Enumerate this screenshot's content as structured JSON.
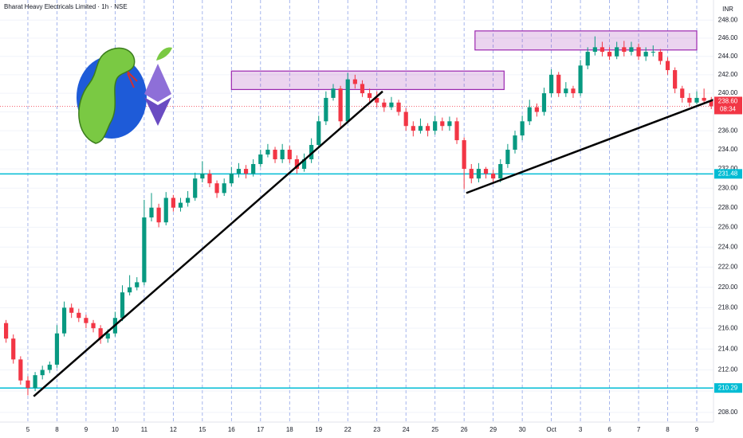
{
  "chart_data": {
    "type": "candlestick",
    "title": "Bharat Heavy Electricals Limited · 1h · NSE",
    "currency": "INR",
    "categories": [
      null,
      null,
      null,
      "5",
      null,
      null,
      null,
      "8",
      null,
      null,
      null,
      "9",
      null,
      null,
      null,
      "10",
      null,
      null,
      null,
      "11",
      null,
      null,
      null,
      "12",
      null,
      null,
      null,
      "15",
      null,
      null,
      null,
      "16",
      null,
      null,
      null,
      "17",
      null,
      null,
      null,
      "18",
      null,
      null,
      null,
      "19",
      null,
      null,
      null,
      "22",
      null,
      null,
      null,
      "23",
      null,
      null,
      null,
      "24",
      null,
      null,
      null,
      "25",
      null,
      null,
      null,
      "26",
      null,
      null,
      null,
      "29",
      null,
      null,
      null,
      "30",
      null,
      null,
      null,
      "Oct",
      null,
      null,
      null,
      "3",
      null,
      null,
      null,
      "6",
      null,
      null,
      null,
      "7",
      null,
      null,
      null,
      "8",
      null,
      null,
      null,
      "9",
      null,
      null
    ],
    "open": [
      216.5,
      215,
      213,
      211,
      210.3,
      211.5,
      212,
      212.5,
      215.5,
      218,
      217.5,
      217,
      216.5,
      216,
      215,
      215.5,
      217,
      219.5,
      220,
      220.5,
      227,
      228,
      226.5,
      229,
      228,
      228.5,
      229,
      231,
      231.5,
      230.5,
      229.5,
      230.5,
      231.5,
      232,
      231.5,
      232.5,
      233.5,
      234,
      233,
      234,
      233,
      232,
      233,
      234.5,
      237,
      239.5,
      240.5,
      237,
      241.5,
      241,
      240,
      239.5,
      239,
      238.5,
      239,
      238,
      236.5,
      236,
      236.5,
      236,
      237,
      236.5,
      237,
      235,
      232,
      231,
      232,
      231.5,
      231,
      232.5,
      234,
      235.5,
      237,
      238.5,
      238,
      240,
      242,
      240,
      240.5,
      240,
      243,
      244.5,
      245,
      244.5,
      244,
      245,
      244.5,
      245,
      244,
      244.5,
      244.5,
      243.5,
      242.5,
      240.5,
      239.5,
      239,
      239.5,
      239.2
    ],
    "high": [
      216.8,
      215.4,
      213.3,
      211.4,
      211.8,
      212.4,
      212.8,
      216.3,
      218.6,
      218.4,
      217.9,
      217.3,
      216.8,
      216.3,
      215.9,
      217.6,
      220.2,
      221.2,
      221,
      228.8,
      229.5,
      228.4,
      229.6,
      229.3,
      229,
      229.7,
      231.6,
      232.8,
      231.9,
      230.8,
      231,
      232.2,
      232.6,
      232.4,
      233,
      234,
      234.6,
      234.3,
      234.6,
      234.4,
      233.4,
      233.6,
      235.2,
      237.6,
      240.2,
      241,
      240.8,
      242.2,
      242,
      241.4,
      240.5,
      240.2,
      239.4,
      239.6,
      239.3,
      238.4,
      237,
      237.3,
      236.8,
      237.6,
      237.4,
      237.5,
      237.4,
      235.3,
      232.5,
      232.6,
      232.2,
      231.9,
      233,
      234.6,
      236,
      237.6,
      239.3,
      238.9,
      240.6,
      242.6,
      242.3,
      241.2,
      240.8,
      243.6,
      245,
      246.2,
      245.6,
      245,
      245.6,
      245.7,
      245.6,
      245.4,
      245,
      245.2,
      244.8,
      243.9,
      242.8,
      240.8,
      240,
      240.2,
      240.5,
      239.6
    ],
    "low": [
      214.6,
      212.6,
      210.6,
      209.6,
      210,
      211.1,
      211.7,
      212.2,
      215.2,
      217,
      216.6,
      216,
      215.6,
      214.5,
      214.6,
      215.2,
      216.7,
      219.2,
      219.7,
      220.2,
      226.6,
      226,
      226.2,
      227.6,
      227.6,
      228.1,
      228.7,
      230.6,
      230.1,
      229,
      229.2,
      230.2,
      231.1,
      231,
      231.2,
      232.2,
      233.2,
      232.6,
      232.6,
      232.6,
      231.5,
      231.7,
      232.6,
      234.2,
      236.6,
      239.2,
      236.3,
      236.8,
      240.5,
      239.6,
      239,
      238.5,
      238,
      238.2,
      237.6,
      236,
      235.4,
      235.7,
      235.4,
      235.6,
      236,
      236,
      234.6,
      229.9,
      230.5,
      230.6,
      231,
      230.5,
      230.6,
      232.1,
      233.6,
      235,
      236.6,
      237.5,
      237.6,
      239.6,
      239.6,
      239.6,
      239.5,
      239.7,
      242.6,
      244.1,
      244,
      243.6,
      243.7,
      244,
      244.1,
      243.6,
      243.5,
      244,
      243.1,
      242,
      240,
      239,
      238.6,
      238.8,
      238.9,
      238.3
    ],
    "close": [
      215,
      213,
      211,
      210.3,
      211.5,
      212,
      212.5,
      215.5,
      218,
      217.5,
      217,
      216.5,
      216,
      215,
      215.5,
      217,
      219.5,
      220,
      220.5,
      227,
      228,
      226.5,
      229,
      228,
      228.5,
      229,
      231,
      231.5,
      230.5,
      229.5,
      230.5,
      231.5,
      232,
      231.5,
      232.5,
      233.5,
      234,
      233,
      234,
      233,
      232,
      233,
      234.5,
      237,
      239.5,
      240.5,
      237,
      241.5,
      241,
      240,
      239.5,
      239,
      238.5,
      239,
      238,
      236.5,
      236,
      236.5,
      236,
      237,
      236.5,
      237,
      235,
      232,
      231,
      232,
      231.5,
      231,
      232.5,
      234,
      235.5,
      237,
      238.5,
      238,
      240,
      242,
      240,
      240.5,
      240,
      243,
      244.5,
      245,
      244.5,
      244,
      245,
      244.5,
      245,
      244,
      244.5,
      244.5,
      243.5,
      242.5,
      240.5,
      239.5,
      239,
      239.5,
      239.2,
      238.6
    ],
    "up_color": "#089981",
    "down_color": "#f23645",
    "ylim": [
      207.1,
      249.8
    ],
    "log_scale": true,
    "yticks": [
      {
        "value": 208,
        "label": "208.00"
      },
      {
        "value": 210,
        "label": "210.00"
      },
      {
        "value": 212,
        "label": "212.00"
      },
      {
        "value": 214,
        "label": "214.00"
      },
      {
        "value": 216,
        "label": "216.00"
      },
      {
        "value": 218,
        "label": "218.00"
      },
      {
        "value": 220,
        "label": "220.00"
      },
      {
        "value": 222,
        "label": "222.00"
      },
      {
        "value": 224,
        "label": "224.00"
      },
      {
        "value": 226,
        "label": "226.00"
      },
      {
        "value": 228,
        "label": "228.00"
      },
      {
        "value": 230,
        "label": "230.00"
      },
      {
        "value": 232,
        "label": "232.00"
      },
      {
        "value": 234,
        "label": "234.00"
      },
      {
        "value": 236,
        "label": "236.00"
      },
      {
        "value": 238,
        "label": "238.00"
      },
      {
        "value": 240,
        "label": "240.00"
      },
      {
        "value": 242,
        "label": "242.00"
      },
      {
        "value": 244,
        "label": "244.00"
      },
      {
        "value": 246,
        "label": "246.00"
      },
      {
        "value": 248,
        "label": "248.00"
      }
    ],
    "grid": true,
    "horizontal_lines": [
      231.48,
      210.29
    ],
    "level_color": "#00bcd4",
    "last_price": {
      "value": 238.6,
      "label": "238.60"
    },
    "countdown": "08:34",
    "zones": [
      {
        "from": 31,
        "to": 68.5,
        "low": 240.4,
        "high": 242.4
      },
      {
        "from": 64.5,
        "to": 95,
        "low": 244.7,
        "high": 246.8
      }
    ],
    "zone_color": "#9c27b0",
    "trendlines": [
      {
        "points": [
          [
            3.8,
            209.5
          ],
          [
            51.8,
            240.2
          ]
        ]
      },
      {
        "points": [
          [
            63.3,
            229.5
          ],
          [
            97.3,
            239.3
          ]
        ]
      }
    ],
    "trendline_color": "#000000"
  }
}
